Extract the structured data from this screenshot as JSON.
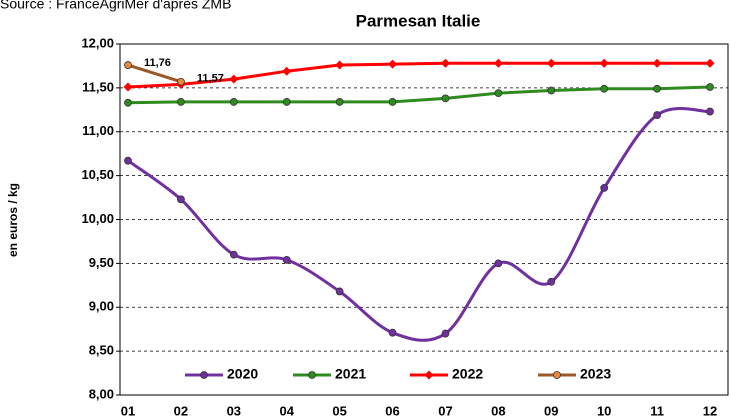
{
  "chart_data": {
    "type": "line",
    "source": "Source : FranceAgriMer d'après ZMB",
    "title": "Parmesan Italie",
    "y_label": "en euros / kg",
    "categories": [
      "01",
      "02",
      "03",
      "04",
      "05",
      "06",
      "07",
      "08",
      "09",
      "10",
      "11",
      "12"
    ],
    "ylim": [
      8,
      12
    ],
    "yticks": [
      {
        "value": 8,
        "label": "8,00"
      },
      {
        "value": 8.5,
        "label": "8,50"
      },
      {
        "value": 9,
        "label": "9,00"
      },
      {
        "value": 9.5,
        "label": "9,50"
      },
      {
        "value": 10,
        "label": "10,00"
      },
      {
        "value": 10.5,
        "label": "10,50"
      },
      {
        "value": 11,
        "label": "11,00"
      },
      {
        "value": 11.5,
        "label": "11,50"
      },
      {
        "value": 12,
        "label": "12,00"
      }
    ],
    "grid": true,
    "series": [
      {
        "name": "2020",
        "color": "#7030a0",
        "marker": "circle",
        "marker_fill": "#7030a0",
        "smooth": true,
        "values": [
          10.67,
          10.23,
          9.6,
          9.54,
          9.18,
          8.71,
          8.7,
          9.5,
          9.29,
          10.36,
          11.19,
          11.23
        ]
      },
      {
        "name": "2021",
        "color": "#2e8b1e",
        "marker": "circle",
        "marker_fill": "#2e8b1e",
        "smooth": false,
        "values": [
          11.33,
          11.34,
          11.34,
          11.34,
          11.34,
          11.34,
          11.38,
          11.44,
          11.47,
          11.49,
          11.49,
          11.51
        ]
      },
      {
        "name": "2022",
        "color": "#ff0000",
        "marker": "diamond",
        "marker_fill": "#ff0000",
        "smooth": false,
        "values": [
          11.51,
          11.54,
          11.6,
          11.69,
          11.76,
          11.77,
          11.78,
          11.78,
          11.78,
          11.78,
          11.78,
          11.78
        ]
      },
      {
        "name": "2023",
        "color": "#99582a",
        "marker": "circle",
        "marker_fill": "#e98a3a",
        "smooth": false,
        "values": [
          11.76,
          11.57,
          null,
          null,
          null,
          null,
          null,
          null,
          null,
          null,
          null,
          null
        ],
        "value_labels": [
          "11,76",
          "11,57",
          null,
          null,
          null,
          null,
          null,
          null,
          null,
          null,
          null,
          null
        ]
      }
    ]
  }
}
